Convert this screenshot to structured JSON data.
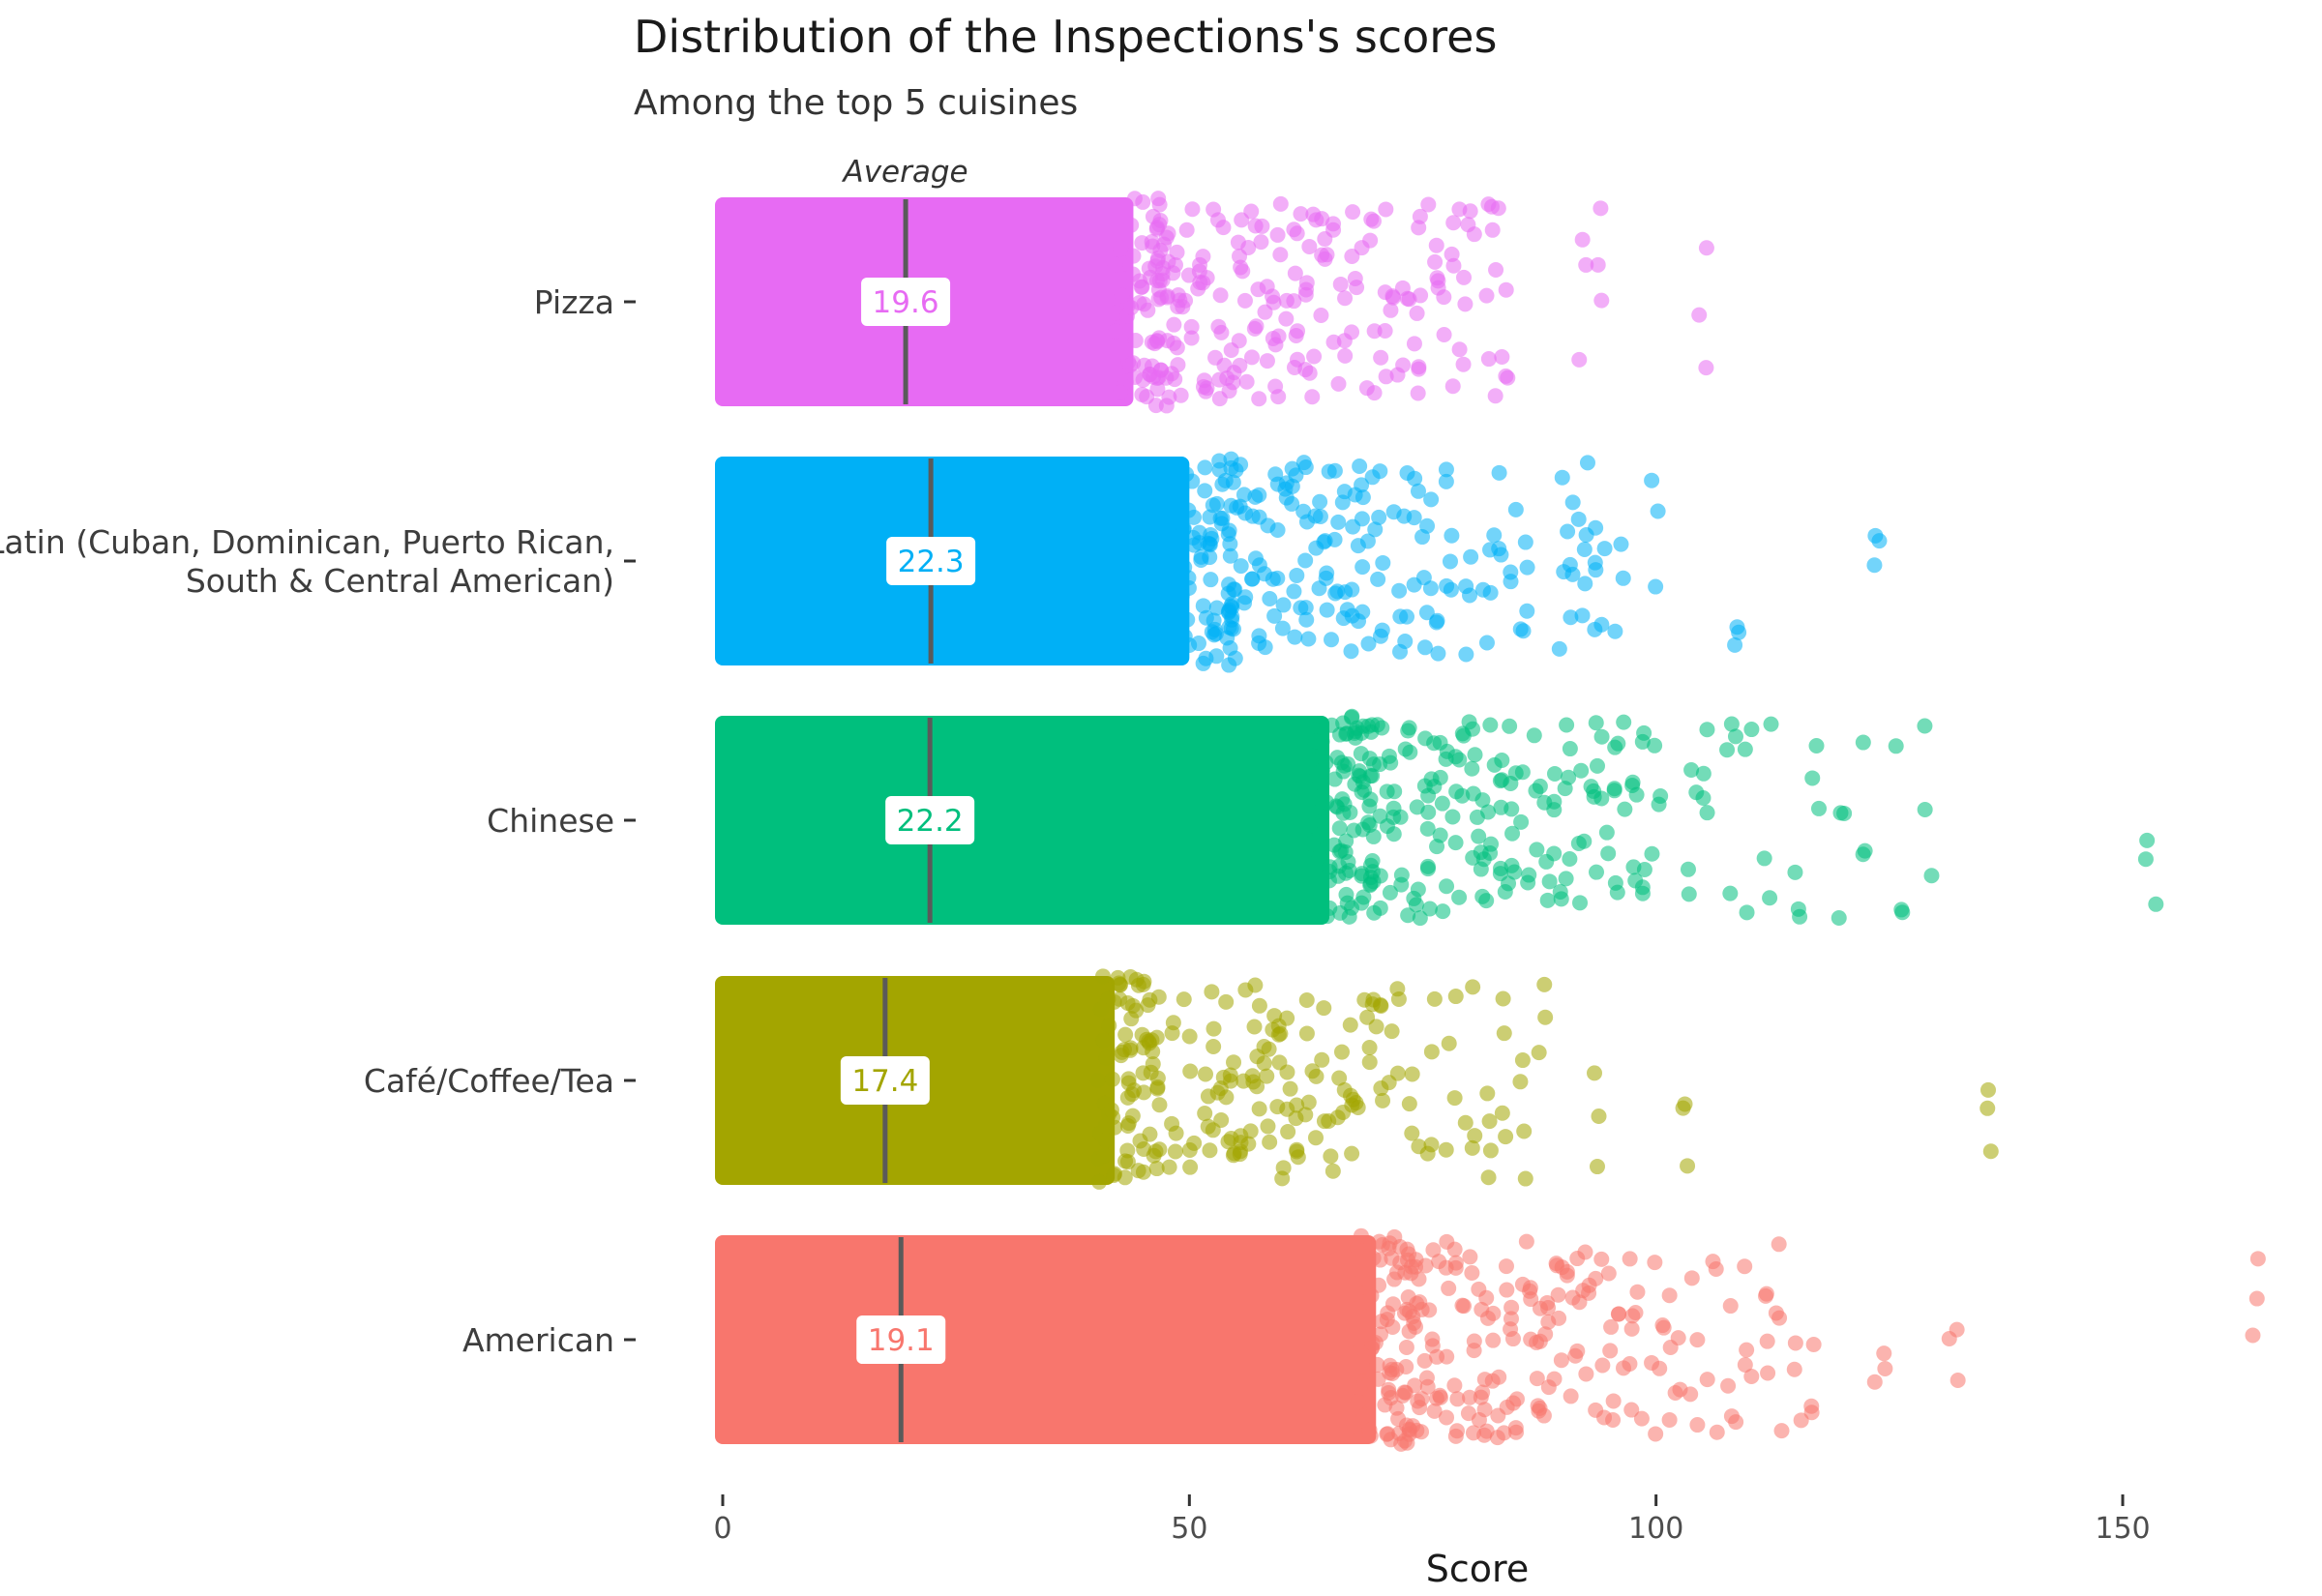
{
  "chart_data": {
    "type": "scatter",
    "title": "Distribution of the Inspections's scores",
    "subtitle": "Among the top 5 cuisines",
    "xlabel": "Score",
    "ylabel": "",
    "xlim": [
      -2,
      165
    ],
    "x_ticks": [
      "0",
      "50",
      "100",
      "150"
    ],
    "x_tick_values": [
      0,
      50,
      100,
      150
    ],
    "grid": false,
    "legend": "none",
    "annotation": "Average",
    "point_style": "jittered points, semi-transparent",
    "categories": [
      "Pizza",
      "Latin (Cuban, Dominican, Puerto Rican, South & Central American)",
      "Chinese",
      "Café/Coffee/Tea",
      "American"
    ],
    "category_label_lines": [
      [
        "Pizza"
      ],
      [
        "Latin (Cuban, Dominican, Puerto Rican,",
        "South & Central American)"
      ],
      [
        "Chinese"
      ],
      [
        "Café/Coffee/Tea"
      ],
      [
        "American"
      ]
    ],
    "series": [
      {
        "category": "Pizza",
        "color": "#E76BF3",
        "mean": 19.6,
        "mean_label": "19.6",
        "dense_range": [
          0,
          44
        ],
        "sparse_points": [
          46,
          47,
          48,
          49,
          50,
          51,
          52,
          53,
          54,
          55,
          56,
          57,
          58,
          59,
          60,
          61,
          62,
          63,
          64,
          65,
          66,
          67,
          68,
          69,
          70,
          71,
          72,
          73,
          74,
          75,
          76,
          77,
          78,
          79,
          80,
          82,
          83,
          84,
          92,
          94,
          105
        ]
      },
      {
        "category": "Latin (Cuban, Dominican, Puerto Rican, South & Central American)",
        "color": "#00B0F6",
        "mean": 22.3,
        "mean_label": "22.3",
        "dense_range": [
          0,
          50
        ],
        "sparse_points": [
          52,
          54,
          55,
          56,
          57,
          58,
          59,
          60,
          61,
          62,
          63,
          64,
          65,
          66,
          67,
          68,
          69,
          70,
          71,
          72,
          73,
          74,
          75,
          76,
          77,
          78,
          80,
          82,
          83,
          85,
          86,
          90,
          91,
          92,
          93,
          94,
          96,
          100,
          109,
          124
        ]
      },
      {
        "category": "Chinese",
        "color": "#00BF7D",
        "mean": 22.2,
        "mean_label": "22.2",
        "dense_range": [
          0,
          65
        ],
        "sparse_points": [
          66,
          67,
          68,
          69,
          70,
          71,
          72,
          73,
          74,
          75,
          76,
          77,
          78,
          79,
          80,
          81,
          82,
          83,
          84,
          85,
          86,
          87,
          88,
          89,
          90,
          91,
          92,
          93,
          94,
          95,
          96,
          97,
          98,
          99,
          100,
          104,
          105,
          108,
          110,
          112,
          115,
          117,
          120,
          122,
          126,
          129,
          153
        ]
      },
      {
        "category": "Café/Coffee/Tea",
        "color": "#A3A500",
        "mean": 17.4,
        "mean_label": "17.4",
        "dense_range": [
          0,
          42
        ],
        "sparse_points": [
          44,
          46,
          48,
          50,
          52,
          53,
          54,
          55,
          56,
          57,
          58,
          59,
          60,
          61,
          62,
          63,
          64,
          65,
          66,
          67,
          68,
          69,
          70,
          71,
          72,
          74,
          76,
          78,
          80,
          82,
          84,
          86,
          88,
          94,
          103,
          136
        ]
      },
      {
        "category": "American",
        "color": "#F8766D",
        "mean": 19.1,
        "mean_label": "19.1",
        "dense_range": [
          0,
          70
        ],
        "sparse_points": [
          71,
          72,
          73,
          74,
          75,
          76,
          77,
          78,
          79,
          80,
          81,
          82,
          83,
          84,
          85,
          86,
          87,
          88,
          89,
          90,
          91,
          92,
          93,
          94,
          95,
          96,
          97,
          98,
          100,
          101,
          102,
          104,
          106,
          108,
          110,
          112,
          113,
          115,
          117,
          124,
          132,
          164
        ]
      }
    ]
  }
}
